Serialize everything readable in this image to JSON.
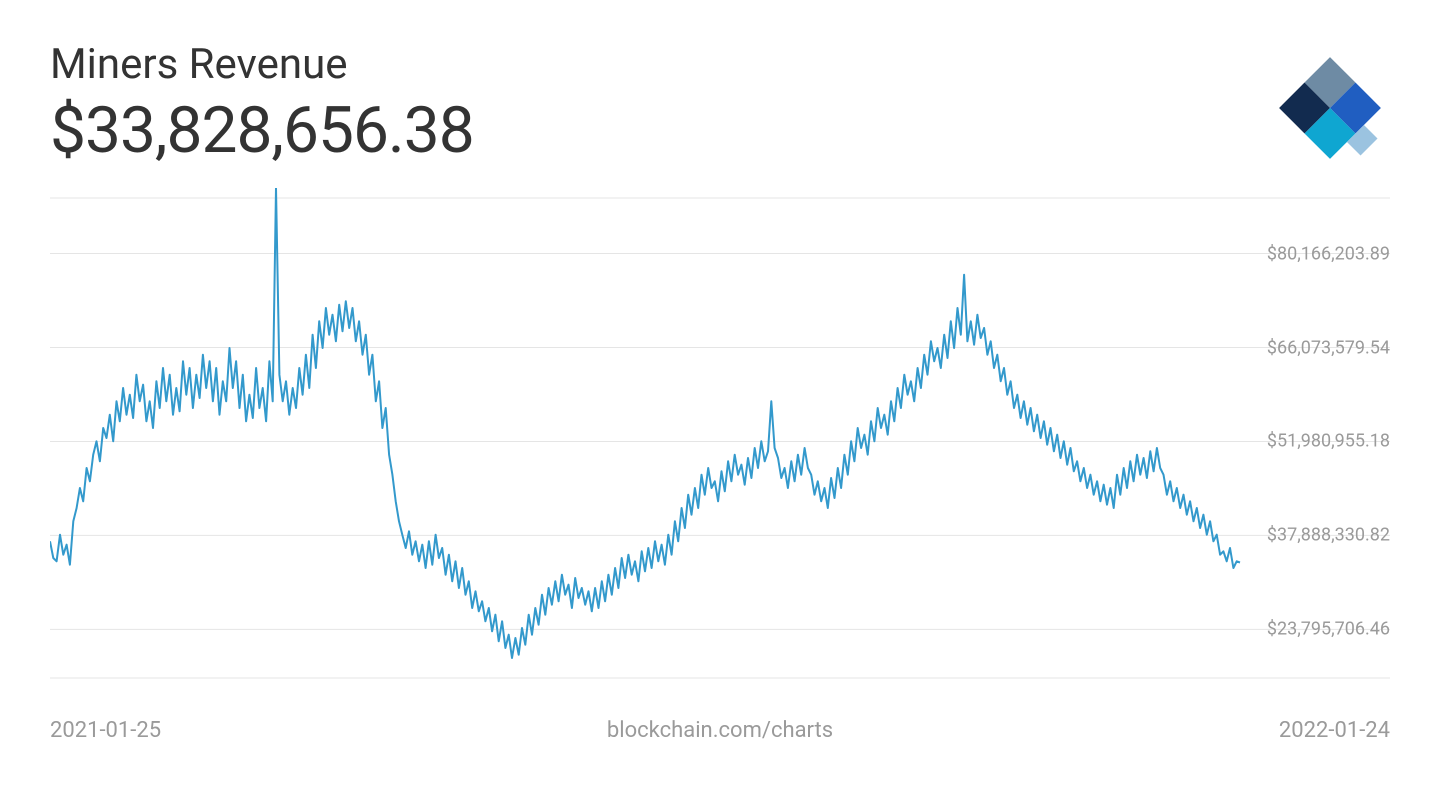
{
  "header": {
    "title": "Miners Revenue",
    "value": "$33,828,656.38"
  },
  "logo": {
    "colors": {
      "top": "#6e8ba4",
      "right": "#205ec1",
      "bottom": "#0fa6d1",
      "left": "#122b4f",
      "far_right": "#9bc3e0"
    }
  },
  "chart": {
    "type": "line",
    "line_color": "#3399cc",
    "line_width": 2,
    "grid_color": "#e5e5e5",
    "background_color": "#ffffff",
    "label_color": "#9a9a9a",
    "label_fontsize": 18,
    "plot_right_margin": 150,
    "ylim": [
      15000000,
      90000000
    ],
    "y_ticks": [
      {
        "value": 80166203.89,
        "label": "$80,166,203.89"
      },
      {
        "value": 66073579.54,
        "label": "$66,073,579.54"
      },
      {
        "value": 51980955.18,
        "label": "$51,980,955.18"
      },
      {
        "value": 37888330.82,
        "label": "$37,888,330.82"
      },
      {
        "value": 23795706.46,
        "label": "$23,795,706.46"
      }
    ],
    "x_start_label": "2021-01-25",
    "x_end_label": "2022-01-24",
    "source_label": "blockchain.com/charts",
    "series": [
      37000000,
      34500000,
      34000000,
      38000000,
      35000000,
      36500000,
      33500000,
      40000000,
      42000000,
      45000000,
      43000000,
      48000000,
      46000000,
      50000000,
      52000000,
      49000000,
      54000000,
      52500000,
      56000000,
      52000000,
      58000000,
      55000000,
      60000000,
      56000000,
      59000000,
      55500000,
      62000000,
      58000000,
      60500000,
      55000000,
      58000000,
      54000000,
      61000000,
      57000000,
      63000000,
      58000000,
      62000000,
      56000000,
      60000000,
      56500000,
      64000000,
      59000000,
      63000000,
      57000000,
      62000000,
      58500000,
      65000000,
      60000000,
      64000000,
      58000000,
      63000000,
      56000000,
      61000000,
      58000000,
      66000000,
      60000000,
      64000000,
      57000000,
      62000000,
      55000000,
      59000000,
      55500000,
      63000000,
      57000000,
      60000000,
      55000000,
      64000000,
      58000000,
      90000000,
      62000000,
      58000000,
      61000000,
      56000000,
      60000000,
      57000000,
      63000000,
      59000000,
      65000000,
      60000000,
      68000000,
      63000000,
      70000000,
      66000000,
      72000000,
      68000000,
      71000000,
      67000000,
      72500000,
      68500000,
      73000000,
      69000000,
      72000000,
      67000000,
      70000000,
      65000000,
      68000000,
      62000000,
      65000000,
      58000000,
      61000000,
      54000000,
      57000000,
      50000000,
      47000000,
      43000000,
      40000000,
      38000000,
      36000000,
      38500000,
      35000000,
      37000000,
      34000000,
      36500000,
      33000000,
      37000000,
      33500000,
      38000000,
      34500000,
      36000000,
      32000000,
      35000000,
      31000000,
      34000000,
      30000000,
      33000000,
      29000000,
      31000000,
      27000000,
      29500000,
      26500000,
      28000000,
      25000000,
      27000000,
      23500000,
      26000000,
      22000000,
      25000000,
      21000000,
      23000000,
      19500000,
      22500000,
      20000000,
      24000000,
      21500000,
      26000000,
      23000000,
      27000000,
      24500000,
      29000000,
      26000000,
      30000000,
      27500000,
      31000000,
      28000000,
      32000000,
      29000000,
      30500000,
      27000000,
      31500000,
      28500000,
      30000000,
      27500000,
      29500000,
      26500000,
      30000000,
      27000000,
      31000000,
      28000000,
      32000000,
      29000000,
      33000000,
      30000000,
      34500000,
      31500000,
      35000000,
      32000000,
      34000000,
      31000000,
      35500000,
      32500000,
      36000000,
      33000000,
      37000000,
      34000000,
      36500000,
      33500000,
      38000000,
      35000000,
      40000000,
      37000000,
      42000000,
      39000000,
      44000000,
      41000000,
      45000000,
      42000000,
      47000000,
      44000000,
      48000000,
      45000000,
      46000000,
      43000000,
      47500000,
      44500000,
      49000000,
      46000000,
      50000000,
      47000000,
      48500000,
      45500000,
      49500000,
      46500000,
      51000000,
      48000000,
      52000000,
      49000000,
      50500000,
      58000000,
      51000000,
      49500000,
      46500000,
      48000000,
      45000000,
      49000000,
      46000000,
      50000000,
      47000000,
      51000000,
      48000000,
      47000000,
      44000000,
      46000000,
      43000000,
      45000000,
      42000000,
      46500000,
      43500000,
      48000000,
      45000000,
      50000000,
      47000000,
      52000000,
      49000000,
      54000000,
      51000000,
      53000000,
      50000000,
      55000000,
      52000000,
      57000000,
      54000000,
      56000000,
      53000000,
      58000000,
      55000000,
      60000000,
      57000000,
      62000000,
      59000000,
      61000000,
      58000000,
      63000000,
      60000000,
      65000000,
      62000000,
      67000000,
      64000000,
      66000000,
      63000000,
      68000000,
      64500000,
      70000000,
      66000000,
      72000000,
      68000000,
      77000000,
      67000000,
      70000000,
      66500000,
      71000000,
      67500000,
      69000000,
      65000000,
      67000000,
      63000000,
      65000000,
      61000000,
      63000000,
      59000000,
      61000000,
      57000000,
      59000000,
      55500000,
      58000000,
      54500000,
      57000000,
      53500000,
      56000000,
      52500000,
      55000000,
      51500000,
      54000000,
      50500000,
      53000000,
      49500000,
      52000000,
      48500000,
      51000000,
      47500000,
      49000000,
      46000000,
      48000000,
      45000000,
      47000000,
      44000000,
      46000000,
      43000000,
      45500000,
      42500000,
      45000000,
      42000000,
      47000000,
      44000000,
      48000000,
      45000000,
      49000000,
      46000000,
      50000000,
      47000000,
      49500000,
      46500000,
      50500000,
      47500000,
      51000000,
      48000000,
      47000000,
      44000000,
      46000000,
      43000000,
      45000000,
      42000000,
      44000000,
      41000000,
      43000000,
      40000000,
      42000000,
      39000000,
      41000000,
      38000000,
      40000000,
      37000000,
      38000000,
      35000000,
      35500000,
      34000000,
      36000000,
      33000000,
      34000000,
      33828656
    ]
  }
}
